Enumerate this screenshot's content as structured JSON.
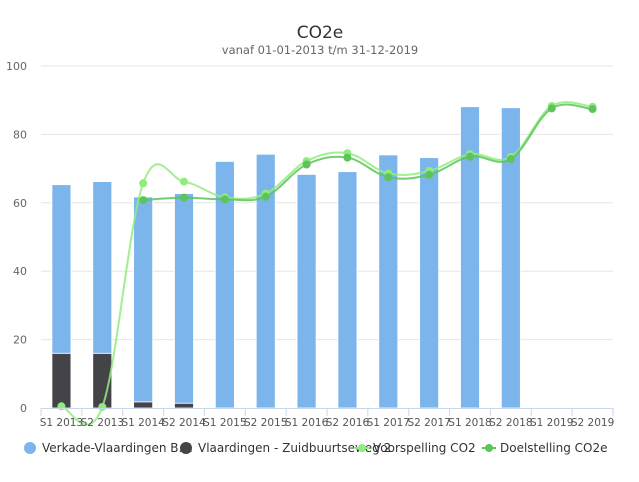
{
  "chart_data": {
    "type": "bar",
    "title": "CO2e",
    "subtitle": "vanaf 01-01-2013 t/m 31-12-2019",
    "xlabel": "",
    "ylabel": "",
    "ylim": [
      0,
      100
    ],
    "yticks": [
      0,
      20,
      40,
      60,
      80,
      100
    ],
    "grid": true,
    "legend_position": "bottom",
    "categories": [
      "S1 2013",
      "S2 2013",
      "S1 2014",
      "S2 2014",
      "S1 2015",
      "S2 2015",
      "S1 2016",
      "S2 2016",
      "S1 2017",
      "S2 2017",
      "S1 2018",
      "S2 2018",
      "S1 2019",
      "S2 2019"
    ],
    "series": [
      {
        "name": "Verkade-Vlaardingen B.V.",
        "kind": "stacked-bar",
        "color": "#7cb5ec",
        "values": [
          49.3,
          50.2,
          59.9,
          61.3,
          72.1,
          74.2,
          68.3,
          69.1,
          74.0,
          73.2,
          88.1,
          87.8,
          null,
          null
        ]
      },
      {
        "name": "Vlaardingen - Zuidbuurtseweg 2",
        "kind": "stacked-bar",
        "color": "#434348",
        "values": [
          16.0,
          16.0,
          1.8,
          1.4,
          0,
          0,
          0,
          0,
          0,
          0,
          0,
          0,
          null,
          null
        ]
      },
      {
        "name": "Voorspelling CO2",
        "kind": "spline",
        "color": "#90ed7d",
        "values": [
          0.5,
          0.3,
          65.7,
          66.2,
          61.6,
          62.7,
          72.2,
          74.5,
          68.6,
          69.3,
          74.2,
          73.4,
          88.3,
          88.1
        ]
      },
      {
        "name": "Doelstelling CO2e",
        "kind": "spline",
        "color": "#5cc45a",
        "values": [
          null,
          null,
          60.8,
          61.5,
          61.0,
          61.8,
          71.2,
          73.2,
          67.5,
          68.2,
          73.5,
          72.8,
          87.6,
          87.4
        ]
      }
    ]
  }
}
